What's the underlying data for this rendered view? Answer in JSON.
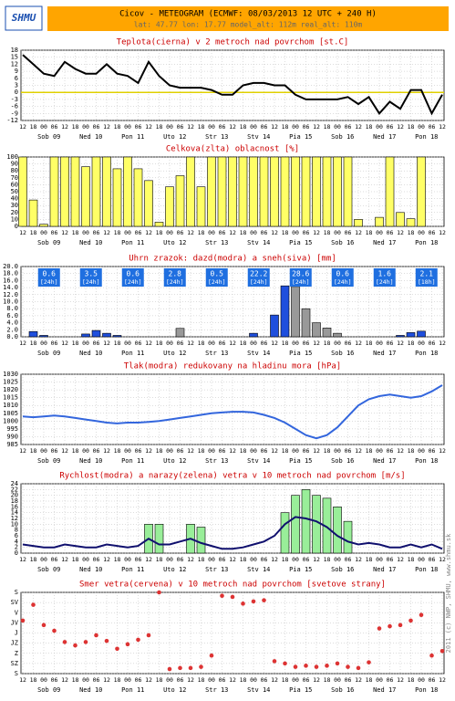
{
  "header": {
    "logo": "SHMU",
    "title": "Cicov - METEOGRAM (ECMWF: 08/03/2013 12 UTC + 240 H)",
    "subtitle": "lat: 47.77  lon: 17.77  model_alt: 112m  real_alt: 110m"
  },
  "copyright": "2011 (c) NWP, SHMU, www.shmu.sk",
  "time_axis": {
    "hours": [
      "12",
      "18",
      "00",
      "06",
      "12",
      "18",
      "00",
      "06",
      "12",
      "18",
      "00",
      "06",
      "12",
      "18",
      "00",
      "06",
      "12",
      "18",
      "00",
      "06",
      "12",
      "18",
      "00",
      "06",
      "12",
      "18",
      "00",
      "06",
      "12",
      "18",
      "00",
      "06",
      "12",
      "18",
      "00",
      "06",
      "12",
      "18",
      "00",
      "06",
      "12"
    ],
    "days": [
      "Sob 09",
      "Ned 10",
      "Pon 11",
      "Uto 12",
      "Str 13",
      "Stv 14",
      "Pia 15",
      "Sob 16",
      "Ned 17",
      "Pon 18"
    ]
  },
  "chart_data": [
    {
      "type": "line",
      "title": "Teplota(cierna) v 2 metroch nad povrchom [st.C]",
      "ylim": [
        -12,
        18
      ],
      "yticks": [
        -12,
        -9,
        -6,
        -3,
        0,
        3,
        6,
        9,
        12,
        15,
        18
      ],
      "grid": true,
      "ref_line": 0,
      "ref_color": "#e0d000",
      "series": [
        {
          "type": "line",
          "color": "#000000",
          "values": [
            16,
            12,
            8,
            7,
            13,
            10,
            8,
            8,
            12,
            8,
            7,
            4,
            13,
            7,
            3,
            2,
            2,
            2,
            1,
            -1,
            -1,
            3,
            4,
            4,
            3,
            3,
            -1,
            -3,
            -3,
            -3,
            -3,
            -2,
            -5,
            -2,
            -9,
            -4,
            -7,
            1,
            1,
            -9,
            -1
          ]
        }
      ]
    },
    {
      "type": "bar",
      "title": "Celkova(zlta) oblacnost [%]",
      "ylim": [
        0,
        100
      ],
      "yticks": [
        0,
        10,
        20,
        30,
        40,
        50,
        60,
        70,
        80,
        90,
        100
      ],
      "grid": true,
      "series": [
        {
          "type": "bar",
          "color": "#ffff66",
          "values": [
            100,
            38,
            3,
            100,
            100,
            100,
            86,
            100,
            100,
            83,
            100,
            83,
            66,
            6,
            57,
            73,
            100,
            57,
            100,
            100,
            100,
            100,
            100,
            100,
            100,
            100,
            100,
            100,
            100,
            100,
            100,
            100,
            10,
            0,
            13,
            100,
            20,
            11,
            100,
            0,
            0
          ]
        }
      ]
    },
    {
      "type": "bar",
      "title": "Uhrn zrazok: dazd(modra) a sneh(siva) [mm]",
      "ylim": [
        0,
        20
      ],
      "yticks": [
        {
          "value": 0,
          "label": "0.0"
        },
        {
          "value": 2,
          "label": "2.0"
        },
        {
          "value": 4,
          "label": "4.0"
        },
        {
          "value": 6,
          "label": "6.0"
        },
        {
          "value": 8,
          "label": "8.0"
        },
        {
          "value": 10,
          "label": "10.0"
        },
        {
          "value": 12,
          "label": "12.0"
        },
        {
          "value": 14,
          "label": "14.0"
        },
        {
          "value": 16,
          "label": "16.0"
        },
        {
          "value": 18,
          "label": "18.0"
        },
        {
          "value": 20,
          "label": "20.0"
        }
      ],
      "grid": true,
      "totals": [
        0.6,
        3.5,
        0.6,
        2.8,
        0.5,
        22.2,
        28.6,
        0.6,
        1.6,
        2.1
      ],
      "total_periods": [
        "[24h]",
        "[24h]",
        "[24h]",
        "[24h]",
        "[24h]",
        "[24h]",
        "[24h]",
        "[24h]",
        "[24h]",
        "[18h]"
      ],
      "totals_color": "#1f6fe0",
      "series": [
        {
          "type": "bar",
          "color": "#1f4fdd",
          "values": [
            0,
            1.5,
            0.4,
            0,
            0,
            0,
            0.8,
            1.8,
            1.0,
            0.4,
            0,
            0,
            0,
            0,
            0,
            0,
            0,
            0,
            0,
            0,
            0,
            0,
            1.0,
            0,
            6.2,
            14.5,
            0,
            0,
            0,
            0,
            0,
            0,
            0,
            0,
            0,
            0,
            0.4,
            1.2,
            1.6,
            0,
            0
          ]
        },
        {
          "type": "bar",
          "color": "#999999",
          "values": [
            0,
            0,
            0,
            0,
            0,
            0,
            0,
            0,
            0,
            0,
            0,
            0,
            0,
            0,
            0,
            2.4,
            0,
            0,
            0,
            0,
            0,
            0,
            0,
            0,
            0,
            0,
            14.3,
            8.0,
            4.0,
            2.5,
            1.0,
            0,
            0,
            0,
            0,
            0,
            0,
            0,
            0,
            0,
            0
          ]
        }
      ]
    },
    {
      "type": "line",
      "title": "Tlak(modra) redukovany na hladinu mora [hPa]",
      "ylim": [
        985,
        1030
      ],
      "yticks": [
        985,
        990,
        995,
        1000,
        1005,
        1010,
        1015,
        1020,
        1025,
        1030
      ],
      "grid": true,
      "series": [
        {
          "type": "line",
          "color": "#3366dd",
          "values": [
            1003,
            1002.5,
            1003,
            1003.5,
            1003,
            1002,
            1001,
            1000,
            999,
            998.5,
            999,
            999,
            999.5,
            1000,
            1001,
            1002,
            1003,
            1004,
            1005,
            1005.5,
            1006,
            1006,
            1005.5,
            1004,
            1002,
            999,
            995,
            991,
            989,
            991,
            996,
            1003,
            1010,
            1014,
            1016,
            1017,
            1016,
            1015,
            1016,
            1019,
            1023
          ]
        }
      ]
    },
    {
      "type": "bar",
      "title": "Rychlost(modra) a narazy(zelena) vetra v 10 metroch nad povrchom [m/s]",
      "ylim": [
        0,
        24
      ],
      "yticks": [
        0,
        2,
        4,
        6,
        8,
        10,
        12,
        14,
        16,
        18,
        20,
        22,
        24
      ],
      "grid": true,
      "series": [
        {
          "type": "bar",
          "color": "#99ee99",
          "values": [
            null,
            null,
            null,
            null,
            null,
            null,
            null,
            null,
            null,
            null,
            null,
            null,
            10,
            10,
            null,
            null,
            10,
            9,
            null,
            null,
            null,
            null,
            null,
            null,
            null,
            14,
            20,
            22,
            20,
            19,
            16,
            11,
            null,
            null,
            null,
            null,
            null,
            null,
            null,
            null,
            null
          ]
        },
        {
          "type": "line",
          "color": "#10106e",
          "values": [
            3,
            2.5,
            2,
            2,
            3,
            2.5,
            2,
            2,
            3,
            2.5,
            2,
            2.5,
            5,
            3,
            3,
            4,
            5,
            3.5,
            2.5,
            1.5,
            1.5,
            2,
            3,
            4,
            6,
            10,
            12.5,
            12,
            11,
            9,
            6,
            4,
            3,
            3.5,
            3,
            2,
            2,
            3,
            2,
            3,
            1.5
          ]
        }
      ]
    },
    {
      "type": "scatter",
      "title": "Smer vetra(cervena) v 10 metroch nad povrchom [svetove strany]",
      "ylim": [
        0,
        360
      ],
      "yticks": [
        {
          "value": 0,
          "label": "S"
        },
        {
          "value": 45,
          "label": "SZ"
        },
        {
          "value": 90,
          "label": "Z"
        },
        {
          "value": 135,
          "label": "JZ"
        },
        {
          "value": 180,
          "label": "J"
        },
        {
          "value": 225,
          "label": "JV"
        },
        {
          "value": 270,
          "label": "V"
        },
        {
          "value": 315,
          "label": "SV"
        },
        {
          "value": 360,
          "label": "S"
        }
      ],
      "grid": true,
      "series": [
        {
          "type": "points",
          "color": "#dd3333",
          "values": [
            235,
            305,
            215,
            190,
            140,
            125,
            140,
            170,
            145,
            110,
            130,
            150,
            170,
            360,
            20,
            25,
            25,
            30,
            80,
            345,
            340,
            310,
            320,
            325,
            55,
            45,
            30,
            35,
            30,
            35,
            45,
            30,
            25,
            50,
            200,
            210,
            215,
            235,
            260,
            80,
            100
          ]
        }
      ]
    }
  ]
}
